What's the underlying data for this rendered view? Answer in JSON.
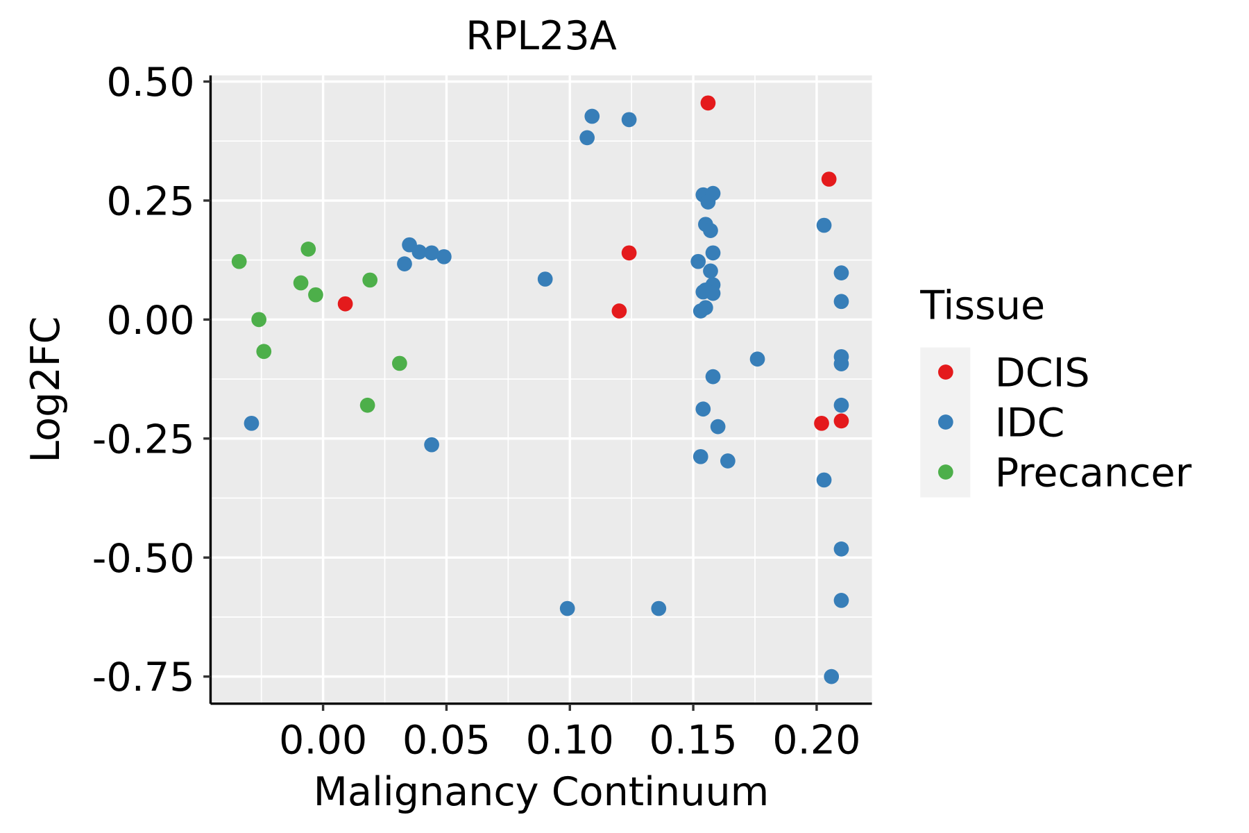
{
  "chart_data": {
    "type": "scatter",
    "title": "RPL23A",
    "xlabel": "Malignancy Continuum",
    "ylabel": "Log2FC",
    "xlim": [
      -0.0456,
      0.2224
    ],
    "ylim": [
      -0.807,
      0.513
    ],
    "xticks": [
      0.0,
      0.05,
      0.1,
      0.15,
      0.2
    ],
    "xtick_labels": [
      "0.00",
      "0.05",
      "0.10",
      "0.15",
      "0.20"
    ],
    "yticks": [
      0.5,
      0.25,
      0.0,
      -0.25,
      -0.5,
      -0.75
    ],
    "ytick_labels": [
      "0.50",
      "0.25",
      "0.00",
      "-0.25",
      "-0.50",
      "-0.75"
    ],
    "grid": true,
    "legend": {
      "title": "Tissue",
      "placement": "right"
    },
    "series": [
      {
        "name": "DCIS",
        "color": "#E41A1C",
        "points": [
          [
            0.156,
            0.455
          ],
          [
            0.205,
            0.295
          ],
          [
            0.124,
            0.14
          ],
          [
            0.12,
            0.018
          ],
          [
            0.009,
            0.033
          ],
          [
            0.202,
            -0.218
          ],
          [
            0.21,
            -0.213
          ]
        ]
      },
      {
        "name": "IDC",
        "color": "#377EB8",
        "points": [
          [
            -0.029,
            -0.218
          ],
          [
            0.033,
            0.117
          ],
          [
            0.035,
            0.157
          ],
          [
            0.039,
            0.142
          ],
          [
            0.044,
            0.14
          ],
          [
            0.049,
            0.132
          ],
          [
            0.044,
            -0.263
          ],
          [
            0.09,
            0.085
          ],
          [
            0.099,
            -0.607
          ],
          [
            0.136,
            -0.607
          ],
          [
            0.107,
            0.382
          ],
          [
            0.109,
            0.427
          ],
          [
            0.124,
            0.42
          ],
          [
            0.154,
            0.262
          ],
          [
            0.158,
            0.265
          ],
          [
            0.156,
            0.247
          ],
          [
            0.155,
            0.2
          ],
          [
            0.157,
            0.187
          ],
          [
            0.158,
            0.14
          ],
          [
            0.152,
            0.122
          ],
          [
            0.157,
            0.102
          ],
          [
            0.158,
            0.073
          ],
          [
            0.155,
            0.062
          ],
          [
            0.154,
            0.058
          ],
          [
            0.158,
            0.055
          ],
          [
            0.155,
            0.025
          ],
          [
            0.153,
            0.018
          ],
          [
            0.176,
            -0.083
          ],
          [
            0.158,
            -0.12
          ],
          [
            0.154,
            -0.188
          ],
          [
            0.16,
            -0.225
          ],
          [
            0.153,
            -0.288
          ],
          [
            0.164,
            -0.297
          ],
          [
            0.203,
            0.198
          ],
          [
            0.21,
            0.098
          ],
          [
            0.21,
            0.038
          ],
          [
            0.21,
            -0.078
          ],
          [
            0.21,
            -0.093
          ],
          [
            0.21,
            -0.18
          ],
          [
            0.203,
            -0.337
          ],
          [
            0.21,
            -0.482
          ],
          [
            0.21,
            -0.59
          ],
          [
            0.206,
            -0.75
          ]
        ]
      },
      {
        "name": "Precancer",
        "color": "#4DAF4A",
        "points": [
          [
            -0.034,
            0.122
          ],
          [
            -0.006,
            0.148
          ],
          [
            -0.009,
            0.077
          ],
          [
            -0.003,
            0.052
          ],
          [
            0.019,
            0.083
          ],
          [
            -0.026,
            0.0
          ],
          [
            -0.024,
            -0.067
          ],
          [
            0.031,
            -0.092
          ],
          [
            0.018,
            -0.18
          ]
        ]
      }
    ]
  }
}
